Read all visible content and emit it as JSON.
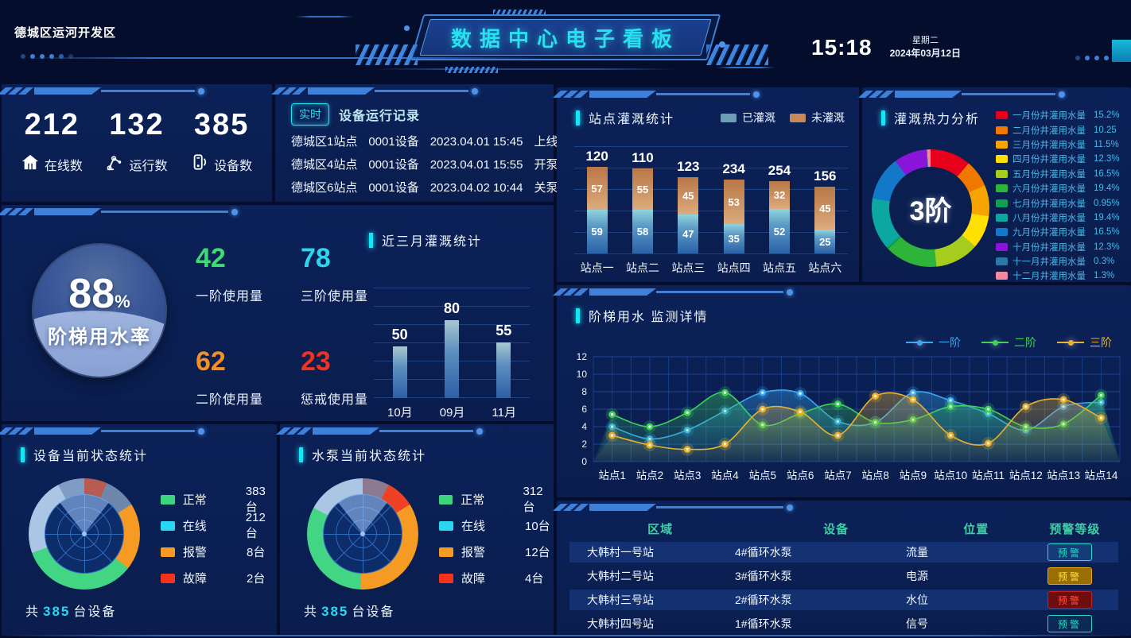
{
  "header": {
    "region": "德城区运河开发区",
    "title": "数据中心电子看板",
    "time": "15:18",
    "weekday": "星期二",
    "date": "2024年03月12日"
  },
  "stats": {
    "items": [
      {
        "icon": "house-icon",
        "value": "212",
        "label": "在线数"
      },
      {
        "icon": "robot-arm-icon",
        "value": "132",
        "label": "运行数"
      },
      {
        "icon": "device-icon",
        "value": "385",
        "label": "设备数"
      }
    ]
  },
  "records": {
    "badge": "实时",
    "title": "设备运行记录",
    "rows": [
      {
        "station": "德城区1站点",
        "device": "0001设备",
        "datetime": "2023.04.01 15:45",
        "action": "上线"
      },
      {
        "station": "德城区4站点",
        "device": "0001设备",
        "datetime": "2023.04.01 15:55",
        "action": "开泵"
      },
      {
        "station": "德城区6站点",
        "device": "0001设备",
        "datetime": "2023.04.02 10:44",
        "action": "关泵"
      }
    ]
  },
  "irrigation": {
    "title": "站点灌溉统计",
    "type": "stacked-bar",
    "legend": [
      {
        "label": "已灌溉",
        "color": "#6d9eb8"
      },
      {
        "label": "未灌溉",
        "color": "#c8885a"
      }
    ],
    "categories": [
      "站点一",
      "站点二",
      "站点三",
      "站点四",
      "站点五",
      "站点六"
    ],
    "totals": [
      120,
      110,
      123,
      234,
      254,
      156
    ],
    "irrigated": [
      59,
      58,
      47,
      35,
      52,
      25
    ],
    "not_irrigated": [
      57,
      55,
      45,
      53,
      32,
      45
    ]
  },
  "heat": {
    "title": "灌溉热力分析",
    "type": "donut",
    "center": "3阶",
    "legend": [
      {
        "label": "一月份井灌用水量",
        "value": "15.2%",
        "color": "#e60019"
      },
      {
        "label": "二月份井灌用水量",
        "value": "10.25",
        "color": "#f07800"
      },
      {
        "label": "三月份井灌用水量",
        "value": "11.5%",
        "color": "#f5a400"
      },
      {
        "label": "四月份井灌用水量",
        "value": "12.3%",
        "color": "#ffe000"
      },
      {
        "label": "五月份井灌用水量",
        "value": "16.5%",
        "color": "#a6cc1e"
      },
      {
        "label": "六月份井灌用水量",
        "value": "19.4%",
        "color": "#2fb43a"
      },
      {
        "label": "七月份井灌用水量",
        "value": "0.95%",
        "color": "#0f9e52"
      },
      {
        "label": "八月份井灌用水量",
        "value": "19.4%",
        "color": "#0ca8a0"
      },
      {
        "label": "九月份井灌用水量",
        "value": "16.5%",
        "color": "#1478c8"
      },
      {
        "label": "十月份井灌用水量",
        "value": "12.3%",
        "color": "#8a14d8"
      },
      {
        "label": "十一月井灌用水量",
        "value": "0.3%",
        "color": "#2a78a8"
      },
      {
        "label": "十二月井灌用水量",
        "value": "1.3%",
        "color": "#f08aa0"
      }
    ]
  },
  "waterRate": {
    "value": "88",
    "unit": "%",
    "label": "阶梯用水率",
    "metrics": [
      {
        "value": "42",
        "label": "一阶使用量",
        "color": "#3ddc72"
      },
      {
        "value": "78",
        "label": "三阶使用量",
        "color": "#29d8f0"
      },
      {
        "value": "62",
        "label": "二阶使用量",
        "color": "#f5901e"
      },
      {
        "value": "23",
        "label": "惩戒使用量",
        "color": "#f03320"
      }
    ]
  },
  "recentMonths": {
    "title": "近三月灌溉统计",
    "type": "bar",
    "categories": [
      "10月",
      "09月",
      "11月"
    ],
    "values": [
      50,
      80,
      55
    ]
  },
  "deviceStatus": {
    "title": "设备当前状态统计",
    "legend": [
      {
        "label": "正常",
        "count": "383台",
        "color": "#3fd57f"
      },
      {
        "label": "在线",
        "count": "212台",
        "color": "#29d8f0"
      },
      {
        "label": "报警",
        "count": "8台",
        "color": "#f59a23"
      },
      {
        "label": "故障",
        "count": "2台",
        "color": "#f5321e"
      }
    ],
    "total_prefix": "共",
    "total": "385",
    "total_suffix": "台设备"
  },
  "pumpStatus": {
    "title": "水泵当前状态统计",
    "legend": [
      {
        "label": "正常",
        "count": "312台",
        "color": "#3fd57f"
      },
      {
        "label": "在线",
        "count": "10台",
        "color": "#29d8f0"
      },
      {
        "label": "报警",
        "count": "12台",
        "color": "#f59a23"
      },
      {
        "label": "故障",
        "count": "4台",
        "color": "#f5321e"
      }
    ],
    "total_prefix": "共",
    "total": "385",
    "total_suffix": "台设备"
  },
  "monitor": {
    "title": "阶梯用水 监测详情",
    "type": "line",
    "ymax": 12,
    "yticks": [
      0,
      2,
      4,
      6,
      8,
      10,
      12
    ],
    "categories": [
      "站点1",
      "站点2",
      "站点3",
      "站点4",
      "站点5",
      "站点6",
      "站点7",
      "站点8",
      "站点9",
      "站点10",
      "站点11",
      "站点12",
      "站点13",
      "站点14"
    ],
    "series": [
      {
        "name": "一阶",
        "color": "#38a8f0",
        "values": [
          4.0,
          2.6,
          3.6,
          5.8,
          7.9,
          7.8,
          4.6,
          4.5,
          7.9,
          7.0,
          5.5,
          3.6,
          6.3,
          6.8
        ]
      },
      {
        "name": "二阶",
        "color": "#3ed158",
        "values": [
          5.4,
          4.0,
          5.6,
          7.9,
          4.2,
          5.5,
          6.6,
          4.5,
          4.8,
          6.3,
          6.0,
          4.0,
          4.3,
          7.6
        ]
      },
      {
        "name": "三阶",
        "color": "#e8b02e",
        "values": [
          3.0,
          1.9,
          1.4,
          2.0,
          6.0,
          5.7,
          3.0,
          7.5,
          7.1,
          3.0,
          2.1,
          6.3,
          7.1,
          5.0
        ]
      }
    ]
  },
  "alerts": {
    "headers": [
      "区域",
      "设备",
      "位置",
      "预警等级"
    ],
    "button_label": "预警",
    "rows": [
      {
        "area": "大韩村一号站",
        "device": "4#循环水泵",
        "position": "流量",
        "level": "teal"
      },
      {
        "area": "大韩村二号站",
        "device": "3#循环水泵",
        "position": "电源",
        "level": "amber"
      },
      {
        "area": "大韩村三号站",
        "device": "2#循环水泵",
        "position": "水位",
        "level": "red"
      },
      {
        "area": "大韩村四号站",
        "device": "1#循环水泵",
        "position": "信号",
        "level": "teal"
      }
    ]
  }
}
